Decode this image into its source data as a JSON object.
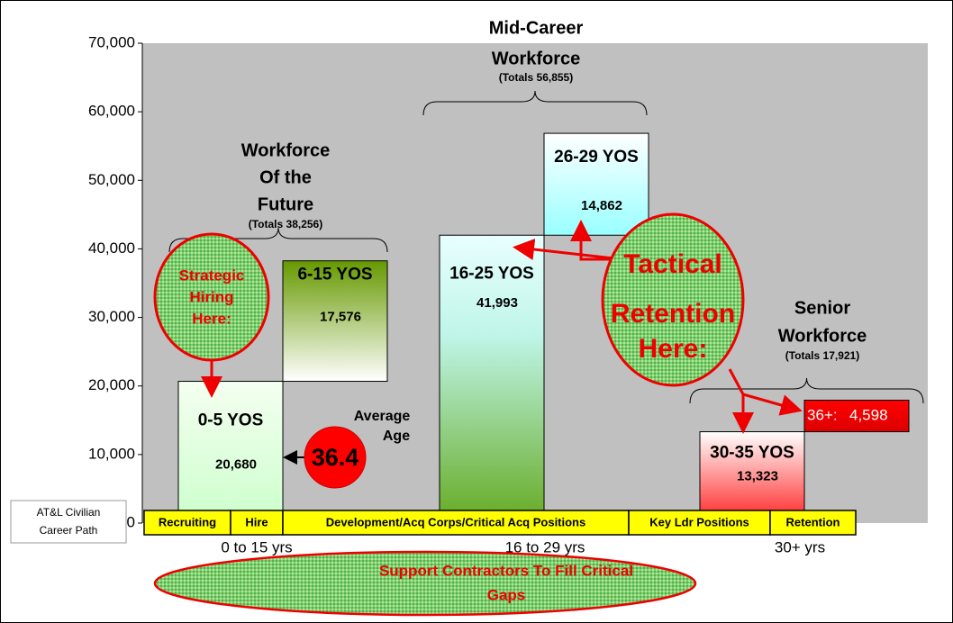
{
  "chart_data": {
    "type": "floating-bar",
    "ylim": [
      0,
      70000
    ],
    "yticks": [
      {
        "value": 0,
        "label": "0"
      },
      {
        "value": 10000,
        "label": "10,000"
      },
      {
        "value": 20000,
        "label": "20,000"
      },
      {
        "value": 30000,
        "label": "30,000"
      },
      {
        "value": 40000,
        "label": "40,000"
      },
      {
        "value": 50000,
        "label": "50,000"
      },
      {
        "value": 60000,
        "label": "60,000"
      },
      {
        "value": 70000,
        "label": "70,000"
      }
    ],
    "groups": [
      {
        "name_lines": [
          "Workforce",
          "Of the",
          "Future"
        ],
        "total_label": "(Totals 38,256)",
        "segments": [
          {
            "label": "0-5 YOS",
            "value": 20680,
            "value_label": "20,680"
          },
          {
            "label": "6-15 YOS",
            "value": 17576,
            "value_label": "17,576"
          }
        ]
      },
      {
        "name_lines": [
          "Mid-Career",
          "Workforce"
        ],
        "total_label": "(Totals 56,855)",
        "segments": [
          {
            "label": "16-25 YOS",
            "value": 41993,
            "value_label": "41,993"
          },
          {
            "label": "26-29 YOS",
            "value": 14862,
            "value_label": "14,862"
          }
        ]
      },
      {
        "name_lines": [
          "Senior",
          "Workforce"
        ],
        "total_label": "(Totals 17,921)",
        "segments": [
          {
            "label": "30-35 YOS",
            "value": 13323,
            "value_label": "13,323"
          },
          {
            "label": "36+:",
            "value": 4598,
            "value_label": "4,598"
          }
        ]
      }
    ],
    "annotations": {
      "hiring": [
        "Strategic",
        "Hiring",
        "Here:"
      ],
      "retention": [
        "Tactical",
        "Retention",
        "Here:"
      ],
      "average_age_label": [
        "Average",
        "Age"
      ],
      "average_age": "36.4",
      "contractors": [
        "Support Contractors To Fill Critical",
        "Gaps"
      ]
    },
    "career_path": {
      "label": [
        "AT&L Civilian",
        "Career Path"
      ],
      "stages": [
        "Recruiting",
        "Hire",
        "Development/Acq Corps/Critical Acq Positions",
        "Key Ldr Positions",
        "Retention"
      ],
      "spans": [
        "0 to 15 yrs",
        "16 to 29 yrs",
        "30+ yrs"
      ]
    }
  }
}
